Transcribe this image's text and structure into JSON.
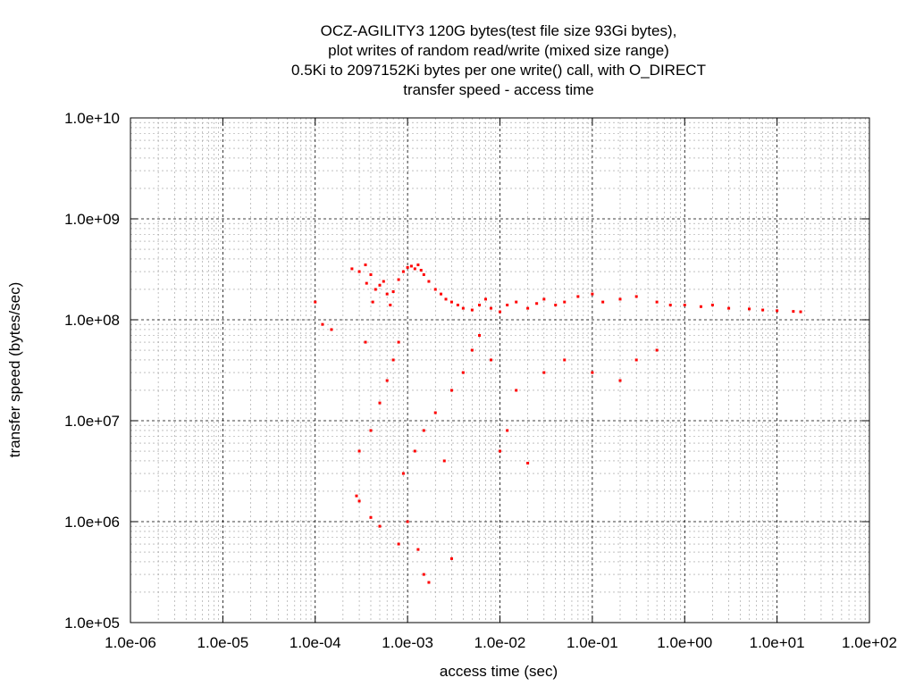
{
  "chart_data": {
    "type": "scatter",
    "title_lines": [
      "OCZ-AGILITY3 120G bytes(test file size 93Gi bytes),",
      "plot writes of random read/write (mixed size range)",
      "0.5Ki to 2097152Ki bytes per one write() call, with O_DIRECT",
      "transfer speed - access time"
    ],
    "xlabel": "access time (sec)",
    "ylabel": "transfer speed (bytes/sec)",
    "x_scale": "log",
    "y_scale": "log",
    "xlim": [
      1e-06,
      100
    ],
    "ylim": [
      100000,
      10000000000
    ],
    "x_ticks": [
      {
        "value": 1e-06,
        "label": "1.0e-06"
      },
      {
        "value": 1e-05,
        "label": "1.0e-05"
      },
      {
        "value": 0.0001,
        "label": "1.0e-04"
      },
      {
        "value": 0.001,
        "label": "1.0e-03"
      },
      {
        "value": 0.01,
        "label": "1.0e-02"
      },
      {
        "value": 0.1,
        "label": "1.0e-01"
      },
      {
        "value": 1,
        "label": "1.0e+00"
      },
      {
        "value": 10,
        "label": "1.0e+01"
      },
      {
        "value": 100,
        "label": "1.0e+02"
      }
    ],
    "y_ticks": [
      {
        "value": 100000,
        "label": "1.0e+05"
      },
      {
        "value": 1000000,
        "label": "1.0e+06"
      },
      {
        "value": 10000000,
        "label": "1.0e+07"
      },
      {
        "value": 100000000,
        "label": "1.0e+08"
      },
      {
        "value": 1000000000,
        "label": "1.0e+09"
      },
      {
        "value": 10000000000,
        "label": "1.0e+10"
      }
    ],
    "grid": true,
    "minor_grid": true,
    "legend": "none",
    "point_color": "#ff0000",
    "series": [
      {
        "points": [
          [
            0.00025,
            320000000
          ],
          [
            0.0003,
            300000000
          ],
          [
            0.00035,
            350000000
          ],
          [
            0.00036,
            230000000
          ],
          [
            0.0004,
            280000000
          ],
          [
            0.00042,
            150000000
          ],
          [
            0.00045,
            200000000
          ],
          [
            0.0005,
            220000000
          ],
          [
            0.00055,
            240000000
          ],
          [
            0.0006,
            180000000
          ],
          [
            0.00065,
            140000000
          ],
          [
            0.0007,
            190000000
          ],
          [
            0.0008,
            250000000
          ],
          [
            0.0009,
            300000000
          ],
          [
            0.001,
            330000000
          ],
          [
            0.0011,
            340000000
          ],
          [
            0.0012,
            320000000
          ],
          [
            0.0013,
            350000000
          ],
          [
            0.0014,
            310000000
          ],
          [
            0.0015,
            280000000
          ],
          [
            0.0017,
            240000000
          ],
          [
            0.002,
            200000000
          ],
          [
            0.0023,
            180000000
          ],
          [
            0.0026,
            160000000
          ],
          [
            0.003,
            150000000
          ],
          [
            0.0035,
            140000000
          ],
          [
            0.004,
            130000000
          ],
          [
            0.005,
            125000000
          ],
          [
            0.006,
            140000000
          ],
          [
            0.007,
            160000000
          ],
          [
            0.008,
            130000000
          ],
          [
            0.01,
            120000000
          ],
          [
            0.012,
            140000000
          ],
          [
            0.015,
            150000000
          ],
          [
            0.02,
            130000000
          ],
          [
            0.025,
            145000000
          ],
          [
            0.03,
            160000000
          ],
          [
            0.04,
            140000000
          ],
          [
            0.05,
            150000000
          ],
          [
            0.07,
            170000000
          ],
          [
            0.1,
            180000000
          ],
          [
            0.13,
            150000000
          ],
          [
            0.2,
            160000000
          ],
          [
            0.3,
            170000000
          ],
          [
            0.5,
            150000000
          ],
          [
            0.7,
            140000000
          ],
          [
            1.0,
            140000000
          ],
          [
            1.5,
            135000000
          ],
          [
            2.0,
            140000000
          ],
          [
            3.0,
            130000000
          ],
          [
            5.0,
            128000000
          ],
          [
            7.0,
            125000000
          ],
          [
            10.0,
            123000000
          ],
          [
            15.0,
            121000000
          ],
          [
            18.0,
            120000000
          ],
          [
            0.00028,
            1800000
          ],
          [
            0.0003,
            1600000
          ],
          [
            0.0004,
            1100000
          ],
          [
            0.0005,
            900000
          ],
          [
            0.0008,
            600000
          ],
          [
            0.001,
            1000000
          ],
          [
            0.0013,
            530000
          ],
          [
            0.0015,
            300000
          ],
          [
            0.0017,
            250000
          ],
          [
            0.003,
            430000
          ],
          [
            0.0003,
            5000000
          ],
          [
            0.0004,
            8000000
          ],
          [
            0.0005,
            15000000
          ],
          [
            0.0006,
            25000000
          ],
          [
            0.0007,
            40000000
          ],
          [
            0.0008,
            60000000
          ],
          [
            0.0009,
            3000000
          ],
          [
            0.0012,
            5000000
          ],
          [
            0.0015,
            8000000
          ],
          [
            0.002,
            12000000
          ],
          [
            0.0025,
            4000000
          ],
          [
            0.003,
            20000000
          ],
          [
            0.004,
            30000000
          ],
          [
            0.005,
            50000000
          ],
          [
            0.006,
            70000000
          ],
          [
            0.008,
            40000000
          ],
          [
            0.01,
            5000000
          ],
          [
            0.012,
            8000000
          ],
          [
            0.015,
            20000000
          ],
          [
            0.02,
            3800000
          ],
          [
            0.03,
            30000000
          ],
          [
            0.05,
            40000000
          ],
          [
            0.1,
            30000000
          ],
          [
            0.2,
            25000000
          ],
          [
            0.3,
            40000000
          ],
          [
            0.5,
            50000000
          ],
          [
            0.0001,
            150000000
          ],
          [
            0.00015,
            80000000
          ],
          [
            0.00012,
            90000000
          ],
          [
            0.00035,
            60000000
          ]
        ]
      }
    ]
  }
}
